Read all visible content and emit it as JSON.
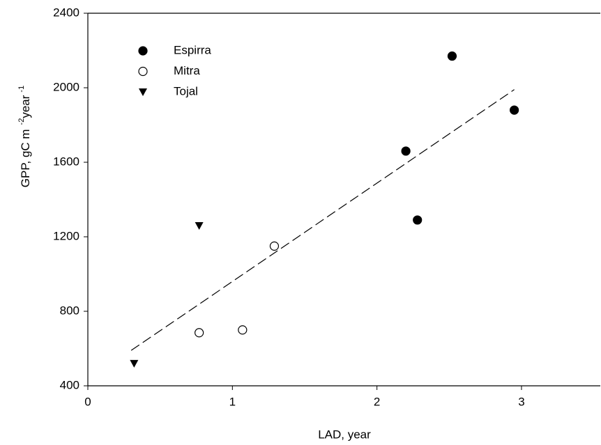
{
  "chart_data": {
    "type": "scatter",
    "xlabel": "LAD, year",
    "ylabel_parts": [
      "GPP, gC m",
      "-2",
      "year",
      "-1"
    ],
    "xlim": [
      0,
      3.55
    ],
    "ylim": [
      400,
      2400
    ],
    "xticks": [
      0,
      1,
      2,
      3
    ],
    "yticks": [
      400,
      800,
      1200,
      1600,
      2000,
      2400
    ],
    "legend": "upper left",
    "series": [
      {
        "name": "Espirra",
        "color": "#000000",
        "marker": "filled-circle",
        "x": [
          2.2,
          2.28,
          2.52,
          2.95
        ],
        "values": [
          1660,
          1290,
          2170,
          1880
        ]
      },
      {
        "name": "Mitra",
        "color": "#000000",
        "marker": "open-circle",
        "x": [
          0.77,
          1.07,
          1.29
        ],
        "values": [
          685,
          700,
          1150
        ]
      },
      {
        "name": "Tojal",
        "color": "#000000",
        "marker": "triangle-down",
        "x": [
          0.32,
          0.77
        ],
        "values": [
          520,
          1260
        ]
      }
    ],
    "fit_line": {
      "x": [
        0.3,
        2.95
      ],
      "values": [
        590,
        1990
      ],
      "dashed": true
    }
  }
}
